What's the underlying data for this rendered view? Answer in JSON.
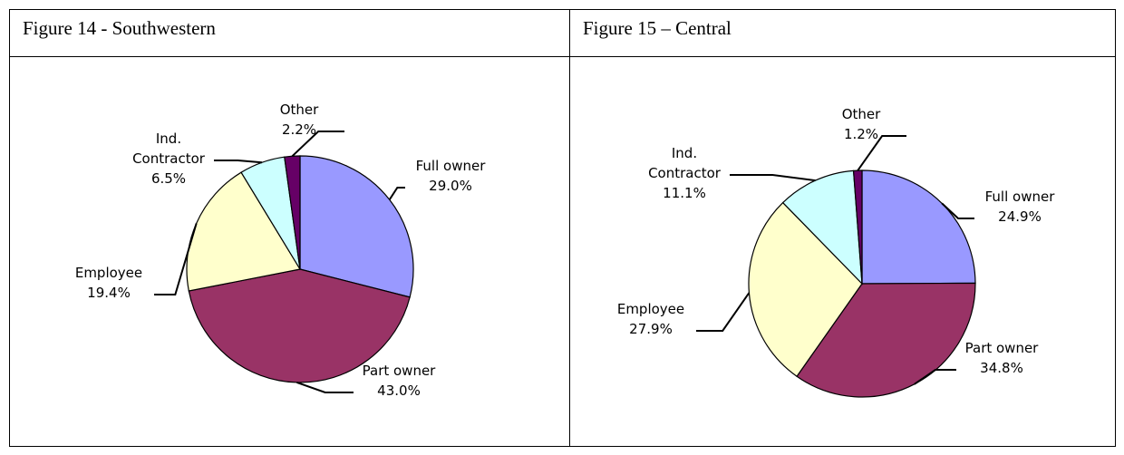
{
  "chart_data": [
    {
      "type": "pie",
      "title": "Figure 14 - Southwestern",
      "categories": [
        "Full owner",
        "Part owner",
        "Employee",
        "Ind. Contractor",
        "Other"
      ],
      "values": [
        29.0,
        43.0,
        19.4,
        6.5,
        2.2
      ],
      "value_labels": [
        "29.0%",
        "43.0%",
        "19.4%",
        "6.5%",
        "2.2%"
      ],
      "colors": [
        "#9999ff",
        "#993366",
        "#ffffcc",
        "#ccffff",
        "#660066"
      ]
    },
    {
      "type": "pie",
      "title": "Figure 15 – Central",
      "categories": [
        "Full owner",
        "Part owner",
        "Employee",
        "Ind. Contractor",
        "Other"
      ],
      "values": [
        24.9,
        34.8,
        27.9,
        11.1,
        1.2
      ],
      "value_labels": [
        "24.9%",
        "34.8%",
        "27.9%",
        "11.1%",
        "1.2%"
      ],
      "colors": [
        "#9999ff",
        "#993366",
        "#ffffcc",
        "#ccffff",
        "#660066"
      ]
    }
  ]
}
